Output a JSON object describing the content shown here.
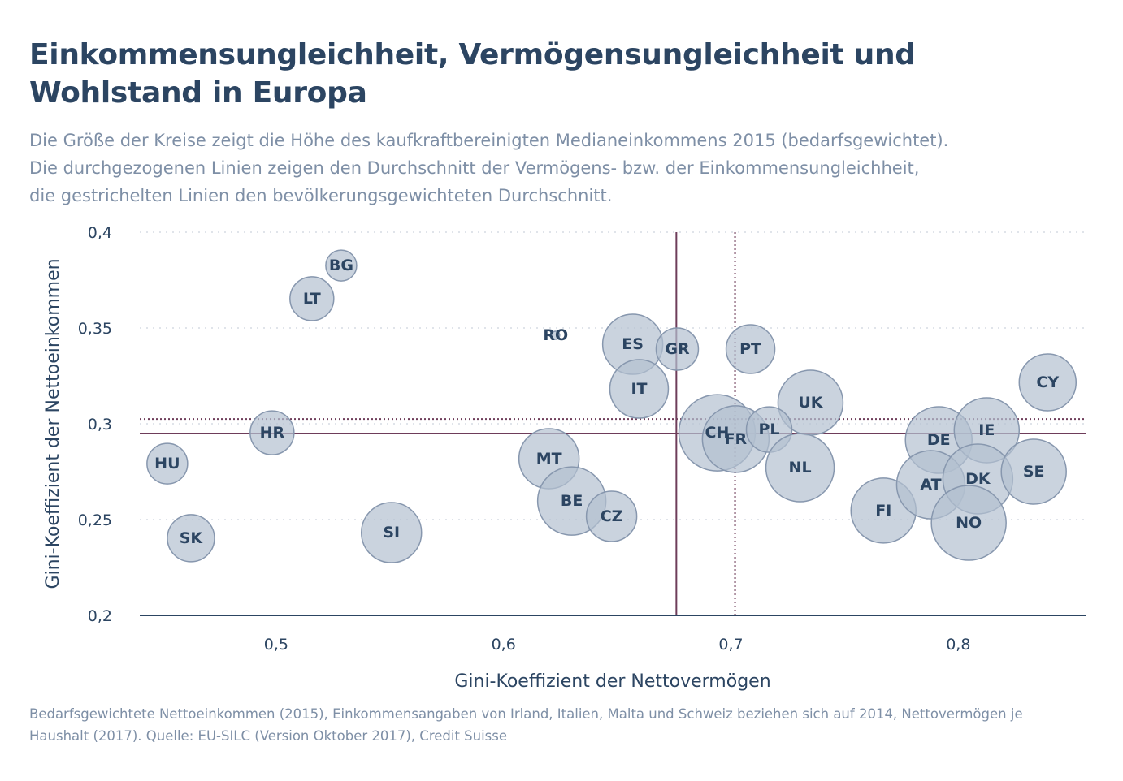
{
  "title": "Einkommensungleichheit, Vermögensungleichheit und Wohlstand in Europa",
  "subtitle": [
    "Die Größe der Kreise zeigt die Höhe des kaufkraftbereinigten Medianeinkommens 2015 (bedarfsgewichtet).",
    "Die durchgezogenen Linien zeigen den Durchschnitt der Vermögens- bzw. der Einkommensungleichheit,",
    "die gestrichelten Linien den bevölkerungsgewichteten Durchschnitt."
  ],
  "footnote": "Bedarfsgewichtete Nettoeinkommen (2015), Einkommensangaben von Irland, Italien, Malta und Schweiz beziehen sich auf 2014, Nettovermögen je Haushalt (2017). Quelle: EU-SILC (Version Oktober 2017), Credit Suisse",
  "colors": {
    "bubble_fill": "#b3c0d0",
    "bubble_stroke": "#8797ae",
    "text": "#2c4562",
    "mean_line": "#6e3d5a",
    "grid": "#d5dbe3"
  },
  "chart_data": {
    "type": "scatter",
    "xlabel": "Gini-Koeffizient der Nettovermögen",
    "ylabel": "Gini-Koeffizient der Nettoeinkommen",
    "xlim": [
      0.44,
      0.856
    ],
    "ylim": [
      0.2,
      0.4
    ],
    "xticks": [
      {
        "v": 0.5,
        "label": "0,5"
      },
      {
        "v": 0.6,
        "label": "0,6"
      },
      {
        "v": 0.7,
        "label": "0,7"
      },
      {
        "v": 0.8,
        "label": "0,8"
      }
    ],
    "yticks": [
      {
        "v": 0.2,
        "label": "0,2"
      },
      {
        "v": 0.25,
        "label": "0,25"
      },
      {
        "v": 0.3,
        "label": "0,3"
      },
      {
        "v": 0.35,
        "label": "0,35"
      },
      {
        "v": 0.4,
        "label": "0,4"
      }
    ],
    "grid": true,
    "mean_lines": {
      "x_mean": 0.676,
      "y_mean": 0.2949,
      "x_weighted_mean": 0.7018,
      "y_weighted_mean": 0.3025
    },
    "points": [
      {
        "label": "BG",
        "x": 0.5286,
        "y": 0.3826,
        "size": 19
      },
      {
        "label": "LT",
        "x": 0.5157,
        "y": 0.3653,
        "size": 27
      },
      {
        "label": "RO",
        "x": 0.6229,
        "y": 0.3462,
        "size": 5
      },
      {
        "label": "ES",
        "x": 0.6568,
        "y": 0.3415,
        "size": 37
      },
      {
        "label": "GR",
        "x": 0.6764,
        "y": 0.339,
        "size": 26
      },
      {
        "label": "PT",
        "x": 0.7086,
        "y": 0.339,
        "size": 30
      },
      {
        "label": "IT",
        "x": 0.6596,
        "y": 0.3182,
        "size": 36
      },
      {
        "label": "UK",
        "x": 0.735,
        "y": 0.311,
        "size": 40
      },
      {
        "label": "CY",
        "x": 0.8393,
        "y": 0.3216,
        "size": 35
      },
      {
        "label": "HR",
        "x": 0.4982,
        "y": 0.2953,
        "size": 27
      },
      {
        "label": "HU",
        "x": 0.4521,
        "y": 0.2792,
        "size": 25
      },
      {
        "label": "SK",
        "x": 0.4625,
        "y": 0.2403,
        "size": 29
      },
      {
        "label": "SI",
        "x": 0.5507,
        "y": 0.2432,
        "size": 37
      },
      {
        "label": "MT",
        "x": 0.62,
        "y": 0.2818,
        "size": 37
      },
      {
        "label": "BE",
        "x": 0.63,
        "y": 0.2597,
        "size": 42
      },
      {
        "label": "CZ",
        "x": 0.6475,
        "y": 0.2517,
        "size": 31
      },
      {
        "label": "CH",
        "x": 0.6939,
        "y": 0.2953,
        "size": 47
      },
      {
        "label": "FR",
        "x": 0.7021,
        "y": 0.292,
        "size": 41
      },
      {
        "label": "PL",
        "x": 0.7168,
        "y": 0.297,
        "size": 28
      },
      {
        "label": "NL",
        "x": 0.7304,
        "y": 0.2771,
        "size": 42
      },
      {
        "label": "FI",
        "x": 0.7671,
        "y": 0.2547,
        "size": 40
      },
      {
        "label": "DE",
        "x": 0.7914,
        "y": 0.2915,
        "size": 41
      },
      {
        "label": "IE",
        "x": 0.8125,
        "y": 0.2966,
        "size": 40
      },
      {
        "label": "AT",
        "x": 0.7879,
        "y": 0.2682,
        "size": 42
      },
      {
        "label": "DK",
        "x": 0.8086,
        "y": 0.2712,
        "size": 43
      },
      {
        "label": "SE",
        "x": 0.8332,
        "y": 0.275,
        "size": 40
      },
      {
        "label": "NO",
        "x": 0.8046,
        "y": 0.2483,
        "size": 46
      }
    ]
  }
}
